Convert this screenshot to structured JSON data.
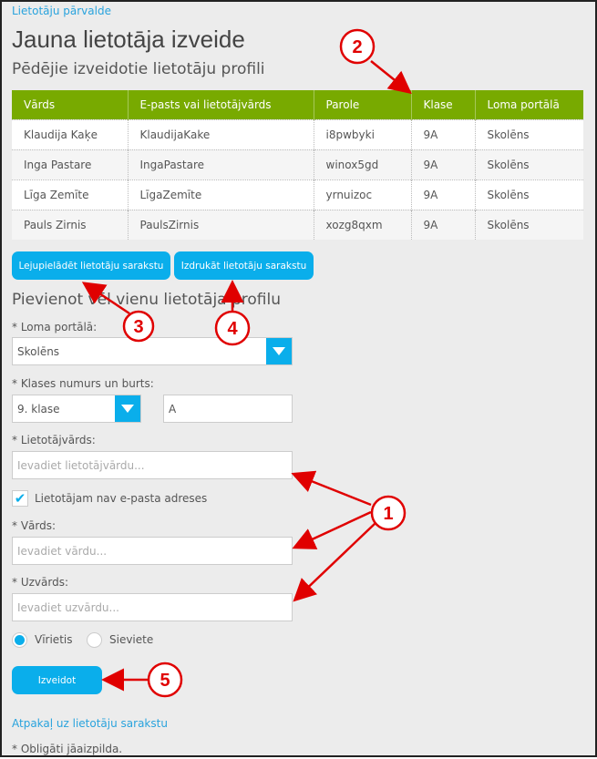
{
  "breadcrumb": "Lietotāju pārvalde",
  "title": "Jauna lietotāja izveide",
  "subtitle": "Pēdējie izveidotie lietotāju profili",
  "table": {
    "headers": [
      "Vārds",
      "E-pasts vai lietotājvārds",
      "Parole",
      "Klase",
      "Loma portālā"
    ],
    "rows": [
      [
        "Klaudija Kaķe",
        "KlaudijaKake",
        "i8pwbyki",
        "9A",
        "Skolēns"
      ],
      [
        "Inga Pastare",
        "IngaPastare",
        "winox5gd",
        "9A",
        "Skolēns"
      ],
      [
        "Līga Zemīte",
        "LīgaZemīte",
        "yrnuizoc",
        "9A",
        "Skolēns"
      ],
      [
        "Pauls Zirnis",
        "PaulsZirnis",
        "xozg8qxm",
        "9A",
        "Skolēns"
      ]
    ]
  },
  "buttons": {
    "download": "Lejupielādēt lietotāju sarakstu",
    "print": "Izdrukāt lietotāju sarakstu",
    "create": "Izveidot"
  },
  "form": {
    "heading": "Pievienot vēl vienu lietotāja profilu",
    "role_label": "* Loma portālā:",
    "role_value": "Skolēns",
    "class_label": "* Klases numurs un burts:",
    "class_value": "9. klase",
    "letter_value": "A",
    "username_label": "* Lietotājvārds:",
    "username_placeholder": "Ievadiet lietotājvārdu...",
    "no_email_label": "Lietotājam nav e-pasta adreses",
    "no_email_checked": true,
    "name_label": "* Vārds:",
    "name_placeholder": "Ievadiet vārdu...",
    "surname_label": "* Uzvārds:",
    "surname_placeholder": "Ievadiet uzvārdu...",
    "gender_options": [
      "Vīrietis",
      "Sieviete"
    ],
    "gender_selected": "Vīrietis"
  },
  "back_link": "Atpakaļ uz lietotāju sarakstu",
  "required_note": "* Obligāti jāaizpilda.",
  "annotations": [
    "1",
    "2",
    "3",
    "4",
    "5"
  ],
  "colors": {
    "accent": "#0aaeeb",
    "header": "#78aa00",
    "annotation": "#e00000"
  }
}
